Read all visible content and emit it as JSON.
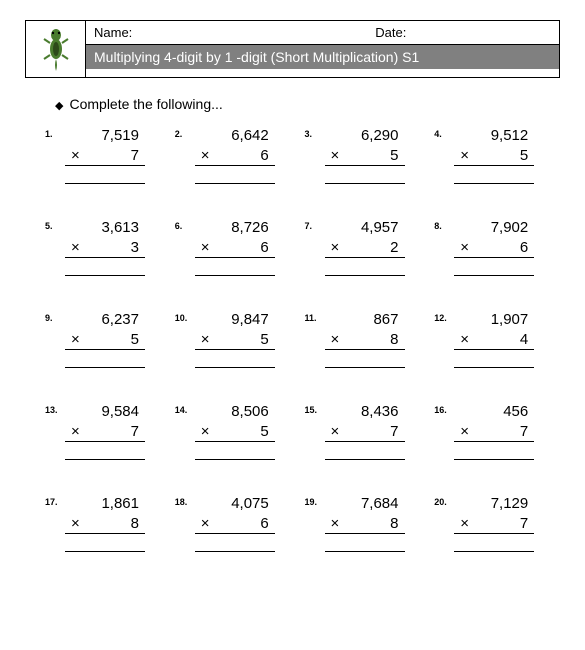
{
  "header": {
    "name_label": "Name:",
    "date_label": "Date:",
    "title": "Multiplying 4-digit by 1 -digit (Short Multiplication) S1"
  },
  "instruction": "Complete the following...",
  "operator": "×",
  "problems": [
    {
      "n": "1.",
      "a": "7,519",
      "b": "7"
    },
    {
      "n": "2.",
      "a": "6,642",
      "b": "6"
    },
    {
      "n": "3.",
      "a": "6,290",
      "b": "5"
    },
    {
      "n": "4.",
      "a": "9,512",
      "b": "5"
    },
    {
      "n": "5.",
      "a": "3,613",
      "b": "3"
    },
    {
      "n": "6.",
      "a": "8,726",
      "b": "6"
    },
    {
      "n": "7.",
      "a": "4,957",
      "b": "2"
    },
    {
      "n": "8.",
      "a": "7,902",
      "b": "6"
    },
    {
      "n": "9.",
      "a": "6,237",
      "b": "5"
    },
    {
      "n": "10.",
      "a": "9,847",
      "b": "5"
    },
    {
      "n": "11.",
      "a": "867",
      "b": "8"
    },
    {
      "n": "12.",
      "a": "1,907",
      "b": "4"
    },
    {
      "n": "13.",
      "a": "9,584",
      "b": "7"
    },
    {
      "n": "14.",
      "a": "8,506",
      "b": "5"
    },
    {
      "n": "15.",
      "a": "8,436",
      "b": "7"
    },
    {
      "n": "16.",
      "a": "456",
      "b": "7"
    },
    {
      "n": "17.",
      "a": "1,861",
      "b": "8"
    },
    {
      "n": "18.",
      "a": "4,075",
      "b": "6"
    },
    {
      "n": "19.",
      "a": "7,684",
      "b": "8"
    },
    {
      "n": "20.",
      "a": "7,129",
      "b": "7"
    }
  ],
  "colors": {
    "title_bg": "#808080",
    "title_fg": "#ffffff",
    "border": "#000000",
    "text": "#000000",
    "logo_green": "#4a7c2e",
    "logo_dark": "#2d4a1a"
  }
}
